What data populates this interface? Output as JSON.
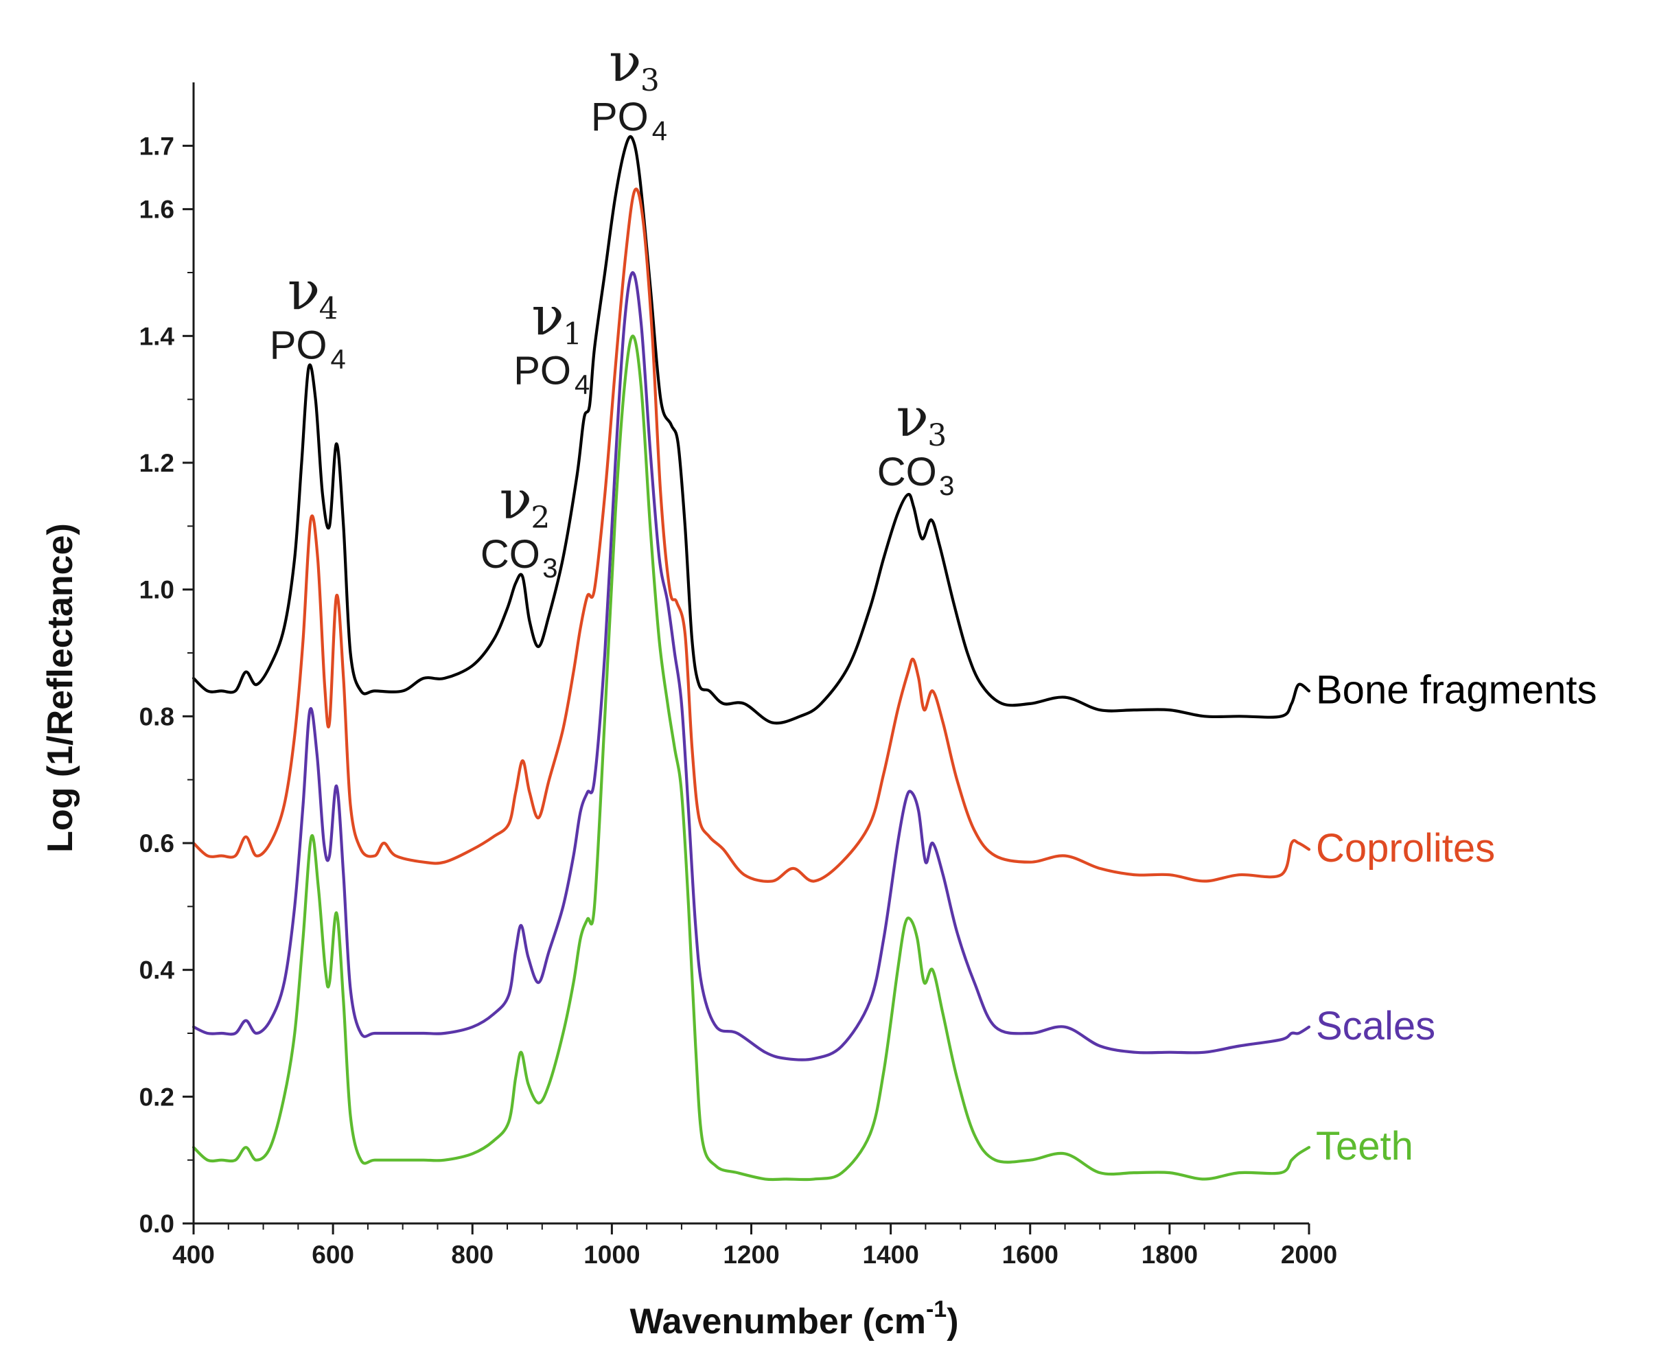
{
  "chart_data": {
    "type": "line",
    "xlabel": "Wavenumber (cm",
    "xlabel_sup": "-1",
    "xlabel_close": ")",
    "ylabel": "Log (1/Reflectance)",
    "xlim": [
      400,
      2000
    ],
    "ylim": [
      0.0,
      1.8
    ],
    "x_ticks": [
      "400",
      "600",
      "800",
      "1000",
      "1200",
      "1400",
      "1600",
      "1800",
      "2000"
    ],
    "y_ticks": [
      "0.0",
      "0.2",
      "0.4",
      "0.6",
      "0.8",
      "1.0",
      "1.2",
      "1.4",
      "1.6",
      "1.7"
    ],
    "annotations": [
      {
        "nu": "ν",
        "nu_sub": "4",
        "group": "PO",
        "group_sub": "4",
        "x": 568,
        "y": 1.44
      },
      {
        "nu": "ν",
        "nu_sub": "2",
        "group": "CO",
        "group_sub": "3",
        "x": 872,
        "y": 1.11
      },
      {
        "nu": "ν",
        "nu_sub": "1",
        "group": "PO",
        "group_sub": "4",
        "x": 918,
        "y": 1.4
      },
      {
        "nu": "ν",
        "nu_sub": "3",
        "group": "PO",
        "group_sub": "4",
        "x": 1029,
        "y": 1.8
      },
      {
        "nu": "ν",
        "nu_sub": "3",
        "group": "CO",
        "group_sub": "3",
        "x": 1441,
        "y": 1.24
      }
    ],
    "series": [
      {
        "name": "Bone fragments",
        "color": "#000000",
        "x": [
          400,
          420,
          440,
          460,
          475,
          490,
          510,
          530,
          545,
          555,
          565,
          575,
          585,
          595,
          605,
          615,
          625,
          640,
          660,
          700,
          730,
          760,
          800,
          830,
          850,
          862,
          872,
          882,
          895,
          910,
          930,
          950,
          960,
          968,
          975,
          990,
          1005,
          1020,
          1030,
          1040,
          1055,
          1070,
          1085,
          1095,
          1105,
          1115,
          1125,
          1140,
          1160,
          1190,
          1230,
          1270,
          1300,
          1340,
          1370,
          1390,
          1410,
          1425,
          1433,
          1445,
          1458,
          1470,
          1490,
          1510,
          1530,
          1560,
          1600,
          1650,
          1700,
          1750,
          1800,
          1850,
          1900,
          1960,
          1975,
          1985,
          2000
        ],
        "values": [
          0.86,
          0.84,
          0.84,
          0.84,
          0.87,
          0.85,
          0.88,
          0.94,
          1.05,
          1.2,
          1.35,
          1.3,
          1.15,
          1.1,
          1.23,
          1.1,
          0.9,
          0.84,
          0.84,
          0.84,
          0.86,
          0.86,
          0.88,
          0.92,
          0.97,
          1.01,
          1.02,
          0.95,
          0.91,
          0.96,
          1.05,
          1.18,
          1.27,
          1.29,
          1.38,
          1.5,
          1.62,
          1.7,
          1.71,
          1.65,
          1.48,
          1.3,
          1.26,
          1.23,
          1.1,
          0.92,
          0.85,
          0.84,
          0.82,
          0.82,
          0.79,
          0.8,
          0.82,
          0.88,
          0.97,
          1.05,
          1.12,
          1.15,
          1.13,
          1.08,
          1.11,
          1.07,
          0.98,
          0.9,
          0.85,
          0.82,
          0.82,
          0.83,
          0.81,
          0.81,
          0.81,
          0.8,
          0.8,
          0.8,
          0.82,
          0.85,
          0.84
        ]
      },
      {
        "name": "Coprolites",
        "color": "#e04a22",
        "x": [
          400,
          420,
          440,
          460,
          475,
          490,
          510,
          530,
          545,
          557,
          568,
          578,
          588,
          595,
          605,
          615,
          625,
          640,
          660,
          673,
          690,
          730,
          760,
          800,
          830,
          852,
          862,
          872,
          882,
          895,
          910,
          930,
          945,
          955,
          965,
          975,
          990,
          1005,
          1020,
          1033,
          1045,
          1058,
          1070,
          1083,
          1093,
          1105,
          1115,
          1125,
          1140,
          1160,
          1190,
          1230,
          1260,
          1290,
          1330,
          1370,
          1390,
          1410,
          1425,
          1432,
          1440,
          1448,
          1460,
          1475,
          1495,
          1520,
          1550,
          1600,
          1650,
          1700,
          1750,
          1800,
          1850,
          1900,
          1960,
          1975,
          1985,
          2000
        ],
        "values": [
          0.6,
          0.58,
          0.58,
          0.58,
          0.61,
          0.58,
          0.6,
          0.66,
          0.77,
          0.92,
          1.11,
          1.05,
          0.85,
          0.79,
          0.99,
          0.86,
          0.66,
          0.59,
          0.58,
          0.6,
          0.58,
          0.57,
          0.57,
          0.59,
          0.61,
          0.63,
          0.68,
          0.73,
          0.68,
          0.64,
          0.7,
          0.78,
          0.87,
          0.94,
          0.99,
          1.0,
          1.15,
          1.35,
          1.53,
          1.63,
          1.58,
          1.4,
          1.15,
          1.0,
          0.98,
          0.93,
          0.75,
          0.64,
          0.61,
          0.59,
          0.55,
          0.54,
          0.56,
          0.54,
          0.57,
          0.63,
          0.71,
          0.81,
          0.87,
          0.89,
          0.86,
          0.81,
          0.84,
          0.79,
          0.7,
          0.62,
          0.58,
          0.57,
          0.58,
          0.56,
          0.55,
          0.55,
          0.54,
          0.55,
          0.55,
          0.6,
          0.6,
          0.59
        ]
      },
      {
        "name": "Scales",
        "color": "#5a35a8",
        "x": [
          400,
          420,
          440,
          460,
          475,
          490,
          510,
          530,
          545,
          557,
          567,
          577,
          587,
          595,
          605,
          615,
          625,
          640,
          660,
          700,
          730,
          760,
          800,
          830,
          852,
          862,
          870,
          880,
          895,
          910,
          930,
          945,
          955,
          965,
          975,
          990,
          1005,
          1018,
          1030,
          1042,
          1055,
          1068,
          1080,
          1090,
          1100,
          1110,
          1120,
          1130,
          1150,
          1180,
          1220,
          1250,
          1290,
          1330,
          1370,
          1390,
          1410,
          1422,
          1430,
          1440,
          1450,
          1460,
          1475,
          1495,
          1520,
          1550,
          1600,
          1650,
          1700,
          1750,
          1800,
          1850,
          1900,
          1960,
          1975,
          1985,
          2000
        ],
        "values": [
          0.31,
          0.3,
          0.3,
          0.3,
          0.32,
          0.3,
          0.32,
          0.38,
          0.5,
          0.66,
          0.81,
          0.74,
          0.6,
          0.58,
          0.69,
          0.55,
          0.37,
          0.3,
          0.3,
          0.3,
          0.3,
          0.3,
          0.31,
          0.33,
          0.36,
          0.43,
          0.47,
          0.42,
          0.38,
          0.43,
          0.5,
          0.58,
          0.65,
          0.68,
          0.7,
          0.9,
          1.2,
          1.42,
          1.5,
          1.42,
          1.22,
          1.05,
          0.98,
          0.9,
          0.82,
          0.65,
          0.47,
          0.37,
          0.31,
          0.3,
          0.27,
          0.26,
          0.26,
          0.28,
          0.35,
          0.45,
          0.6,
          0.67,
          0.68,
          0.65,
          0.57,
          0.6,
          0.55,
          0.46,
          0.38,
          0.31,
          0.3,
          0.31,
          0.28,
          0.27,
          0.27,
          0.27,
          0.28,
          0.29,
          0.3,
          0.3,
          0.31
        ]
      },
      {
        "name": "Teeth",
        "color": "#5dbb2f",
        "x": [
          400,
          420,
          440,
          460,
          475,
          490,
          510,
          530,
          545,
          557,
          569,
          579,
          589,
          595,
          605,
          615,
          625,
          640,
          660,
          700,
          730,
          760,
          800,
          830,
          852,
          862,
          870,
          880,
          895,
          910,
          930,
          945,
          955,
          965,
          975,
          990,
          1005,
          1018,
          1030,
          1042,
          1055,
          1068,
          1080,
          1090,
          1100,
          1110,
          1120,
          1130,
          1150,
          1180,
          1220,
          1250,
          1290,
          1330,
          1370,
          1390,
          1410,
          1420,
          1428,
          1438,
          1448,
          1460,
          1475,
          1495,
          1520,
          1550,
          1600,
          1650,
          1700,
          1750,
          1800,
          1850,
          1900,
          1960,
          1975,
          1985,
          2000
        ],
        "values": [
          0.12,
          0.1,
          0.1,
          0.1,
          0.12,
          0.1,
          0.12,
          0.2,
          0.3,
          0.45,
          0.61,
          0.53,
          0.4,
          0.38,
          0.49,
          0.35,
          0.17,
          0.1,
          0.1,
          0.1,
          0.1,
          0.1,
          0.11,
          0.13,
          0.16,
          0.23,
          0.27,
          0.22,
          0.19,
          0.22,
          0.3,
          0.38,
          0.45,
          0.48,
          0.5,
          0.8,
          1.12,
          1.32,
          1.4,
          1.32,
          1.1,
          0.92,
          0.82,
          0.75,
          0.68,
          0.5,
          0.28,
          0.13,
          0.09,
          0.08,
          0.07,
          0.07,
          0.07,
          0.08,
          0.14,
          0.24,
          0.4,
          0.47,
          0.48,
          0.45,
          0.38,
          0.4,
          0.33,
          0.23,
          0.14,
          0.1,
          0.1,
          0.11,
          0.08,
          0.08,
          0.08,
          0.07,
          0.08,
          0.08,
          0.1,
          0.11,
          0.12
        ]
      }
    ]
  }
}
